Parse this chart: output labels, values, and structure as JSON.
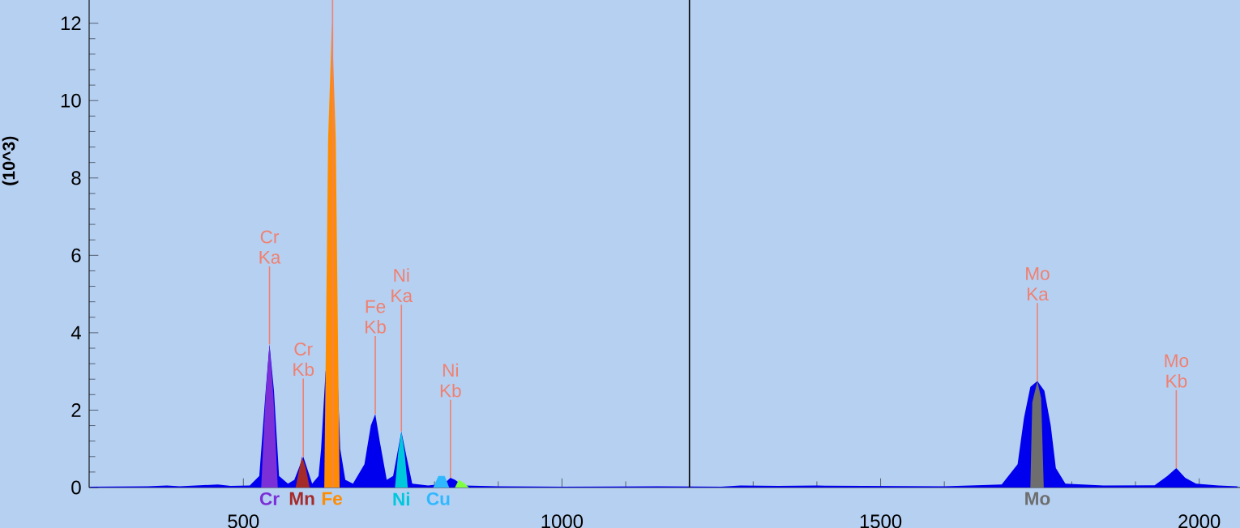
{
  "chart_data": {
    "type": "area",
    "ylabel": "(10^3)",
    "xlim": [
      258,
      2064
    ],
    "ylim": [
      0,
      12.6
    ],
    "xticks": [
      500,
      1000,
      1500,
      2000
    ],
    "yticks": [
      0,
      2,
      4,
      6,
      8,
      10,
      12
    ],
    "grid": false,
    "legend": "bottom",
    "marker": "none",
    "series": [
      {
        "color": "#0000ee",
        "x": [
          260,
          350,
          380,
          400,
          460,
          480,
          510,
          525,
          535,
          541,
          548,
          556,
          570,
          580,
          594,
          600,
          608,
          618,
          622,
          629,
          634,
          640,
          646,
          652,
          660,
          672,
          690,
          700,
          707,
          714,
          725,
          735,
          748,
          756,
          765,
          790,
          815,
          825,
          832,
          845,
          900,
          1000,
          1150,
          1250,
          1280,
          1340,
          1400,
          1600,
          1690,
          1715,
          1725,
          1735,
          1746,
          1757,
          1767,
          1775,
          1790,
          1850,
          1930,
          1950,
          1964,
          1978,
          1995,
          2030,
          2060
        ],
        "values": [
          0.02,
          0.03,
          0.05,
          0.03,
          0.08,
          0.04,
          0.05,
          0.3,
          2.5,
          3.7,
          2.5,
          0.3,
          0.1,
          0.2,
          0.8,
          0.5,
          0.1,
          0.3,
          1.0,
          3.0,
          null,
          null,
          3.7,
          1.0,
          0.2,
          0.1,
          0.6,
          1.6,
          1.9,
          1.2,
          0.2,
          0.3,
          1.45,
          0.8,
          0.1,
          0.05,
          0.1,
          0.25,
          0.2,
          0.05,
          0.03,
          0.02,
          0.03,
          0.02,
          0.05,
          0.04,
          0.05,
          0.03,
          0.08,
          0.6,
          1.8,
          2.6,
          2.75,
          2.5,
          1.6,
          0.5,
          0.1,
          0.05,
          0.06,
          0.3,
          0.5,
          0.25,
          0.1,
          0.05,
          0.03
        ]
      },
      {
        "name": "Cr",
        "color": "#7b2fd6",
        "x": [
          528,
          535,
          541,
          547,
          554
        ],
        "values": [
          0,
          2.4,
          3.7,
          2.4,
          0
        ]
      },
      {
        "name": "Mn",
        "color": "#a52a2a",
        "x": [
          582,
          588,
          592,
          598,
          604
        ],
        "values": [
          0,
          0.5,
          0.8,
          0.5,
          0
        ]
      },
      {
        "name": "Fe",
        "color": "#ff8c00",
        "x": [
          627,
          633,
          639,
          645,
          651
        ],
        "values": [
          0,
          9,
          12,
          9,
          0
        ]
      },
      {
        "name": "Ni",
        "color": "#00c8dc",
        "x": [
          738,
          743,
          748,
          753,
          758
        ],
        "values": [
          0,
          0.9,
          1.45,
          0.9,
          0
        ]
      },
      {
        "name": "Cu",
        "color": "#30b8ff",
        "x": [
          798,
          806,
          816,
          823
        ],
        "values": [
          0,
          0.3,
          0.3,
          0
        ]
      },
      {
        "color": "#80ff40",
        "x": [
          832,
          838,
          846,
          854
        ],
        "values": [
          0,
          0.2,
          0.12,
          0
        ]
      },
      {
        "name": "Mo",
        "color": "#6e6e6e",
        "x": [
          1735,
          1738,
          1746,
          1752,
          1756
        ],
        "values": [
          0,
          2.2,
          2.75,
          2.3,
          0
        ]
      }
    ],
    "ref_lines": [
      {
        "axis": "x",
        "value": 640,
        "color": "#f08070"
      },
      {
        "axis": "x",
        "value": 1200,
        "color": "#000000"
      }
    ],
    "annotations": [
      {
        "text": "Cr Ka",
        "x": 541,
        "y": 3.7
      },
      {
        "text": "Cr Kb",
        "x": 594,
        "y": 0.8
      },
      {
        "text": "Fe Kb",
        "x": 707,
        "y": 1.9
      },
      {
        "text": "Ni Ka",
        "x": 748,
        "y": 1.45
      },
      {
        "text": "Ni Kb",
        "x": 825,
        "y": 0.25
      },
      {
        "text": "Mo Ka",
        "x": 1746,
        "y": 2.75
      },
      {
        "text": "Mo Kb",
        "x": 1964,
        "y": 0.5
      }
    ]
  }
}
